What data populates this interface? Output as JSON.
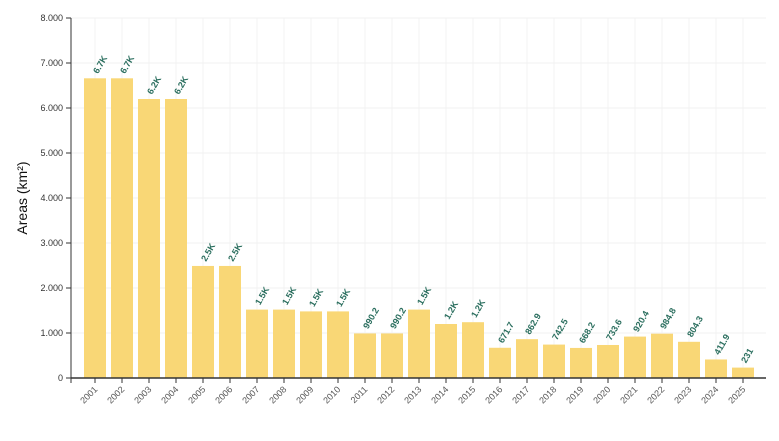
{
  "chart_data": {
    "type": "bar",
    "title": "",
    "xlabel": "",
    "ylabel": "Areas (km²)",
    "ylim": [
      0,
      8000
    ],
    "yticks": [
      0,
      1000,
      2000,
      3000,
      4000,
      5000,
      6000,
      7000,
      8000
    ],
    "ytick_labels": [
      "0",
      "1.000",
      "2.000",
      "3.000",
      "4.000",
      "5.000",
      "6.000",
      "7.000",
      "8.000"
    ],
    "grid": true,
    "bar_color": "#f9d776",
    "label_color": "#2a6e5e",
    "categories": [
      "2001",
      "2002",
      "2003",
      "2004",
      "2005",
      "2006",
      "2007",
      "2008",
      "2009",
      "2010",
      "2011",
      "2012",
      "2013",
      "2014",
      "2015",
      "2016",
      "2017",
      "2018",
      "2019",
      "2020",
      "2021",
      "2022",
      "2023",
      "2024",
      "2025"
    ],
    "values": [
      6660,
      6660,
      6200,
      6200,
      2490,
      2490,
      1520,
      1520,
      1480,
      1480,
      990.2,
      990.2,
      1520,
      1200,
      1240,
      671.7,
      862.9,
      742.5,
      668.2,
      733.6,
      920.4,
      984.8,
      804.3,
      411.9,
      231
    ],
    "data_labels": [
      "6.7K",
      "6.7K",
      "6.2K",
      "6.2K",
      "2.5K",
      "2.5K",
      "1.5K",
      "1.5K",
      "1.5K",
      "1.5K",
      "990.2",
      "990.2",
      "1.5K",
      "1.2K",
      "1.2K",
      "671.7",
      "862.9",
      "742.5",
      "668.2",
      "733.6",
      "920.4",
      "984.8",
      "804.3",
      "411.9",
      "231"
    ]
  }
}
